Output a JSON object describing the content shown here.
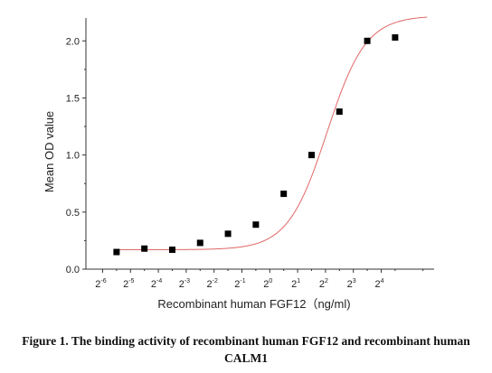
{
  "chart_data": {
    "type": "scatter",
    "xlabel": "Recombinant human FGF12（ng/ml)",
    "ylabel": "Mean OD value",
    "x_scale": "log2",
    "xlim": [
      -6.6,
      5.9
    ],
    "ylim": [
      0.0,
      2.2
    ],
    "x_ticks": [
      {
        "base": "2",
        "exp": "-6",
        "value": -6
      },
      {
        "base": "2",
        "exp": "-5",
        "value": -5
      },
      {
        "base": "2",
        "exp": "-4",
        "value": -4
      },
      {
        "base": "2",
        "exp": "-3",
        "value": -3
      },
      {
        "base": "2",
        "exp": "-2",
        "value": -2
      },
      {
        "base": "2",
        "exp": "-1",
        "value": -1
      },
      {
        "base": "2",
        "exp": "0",
        "value": 0
      },
      {
        "base": "2",
        "exp": "1",
        "value": 1
      },
      {
        "base": "2",
        "exp": "2",
        "value": 2
      },
      {
        "base": "2",
        "exp": "3",
        "value": 3
      },
      {
        "base": "2",
        "exp": "4",
        "value": 4
      }
    ],
    "y_ticks": [
      "0.0",
      "0.5",
      "1.0",
      "1.5",
      "2.0"
    ],
    "points_x_log2": [
      -5.5,
      -4.5,
      -3.5,
      -2.5,
      -1.5,
      -0.5,
      0.5,
      1.5,
      2.5,
      3.5,
      4.5
    ],
    "points_y": [
      0.15,
      0.18,
      0.17,
      0.23,
      0.31,
      0.39,
      0.66,
      1.0,
      1.38,
      2.0,
      2.03
    ],
    "fit_curve": {
      "type": "4PL",
      "bottom": 0.17,
      "top": 2.22,
      "ec50_log2": 2.05,
      "slope_log2": 0.7
    },
    "grid": false,
    "colors": {
      "points": "#000000",
      "curve": "#e06666",
      "axes": "#333333"
    }
  },
  "caption": {
    "line1": "Figure 1. The binding activity of recombinant human FGF12 and recombinant human",
    "line2": "CALM1"
  }
}
